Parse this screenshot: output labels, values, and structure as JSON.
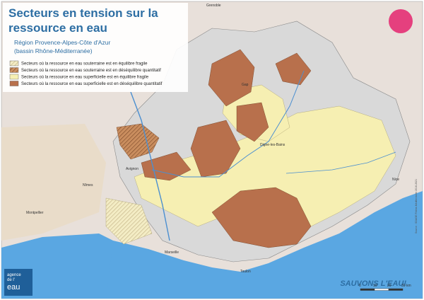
{
  "header": {
    "title_lines": [
      "Secteurs en tension sur la",
      "ressource en eau"
    ],
    "subtitle_lines": [
      "Région Provence-Alpes-Côte d'Azur",
      "(bassin Rhône-Méditerranée)"
    ]
  },
  "legend": {
    "items": [
      {
        "label": "Secteurs où la ressource en eau souterraine est en équilibre fragile",
        "color": "#f3ecc4"
      },
      {
        "label": "Secteurs où la ressource en eau souterraine est en déséquilibre quantitatif",
        "color": "#c98d5e"
      },
      {
        "label": "Secteurs où la ressource en eau superficielle est en équilibre fragile",
        "color": "#f6efb2"
      },
      {
        "label": "Secteurs où la ressource en eau superficielle est en déséquilibre quantitatif",
        "color": "#b8704c"
      }
    ]
  },
  "places": [
    "Grenoble",
    "Gap",
    "Digne-les-Bains",
    "Avignon",
    "Nîmes",
    "Montpellier",
    "Marseille",
    "Toulon",
    "Nice"
  ],
  "scale": {
    "labels": [
      "0",
      "10",
      "20",
      "30 km"
    ]
  },
  "logos": {
    "slogan": "SAUVONS L'EAU!",
    "agency_lines": [
      "agence",
      "de l'",
      "eau"
    ]
  },
  "source": "Source : SDAGE Rhône-Méditerranée 2016-2021"
}
